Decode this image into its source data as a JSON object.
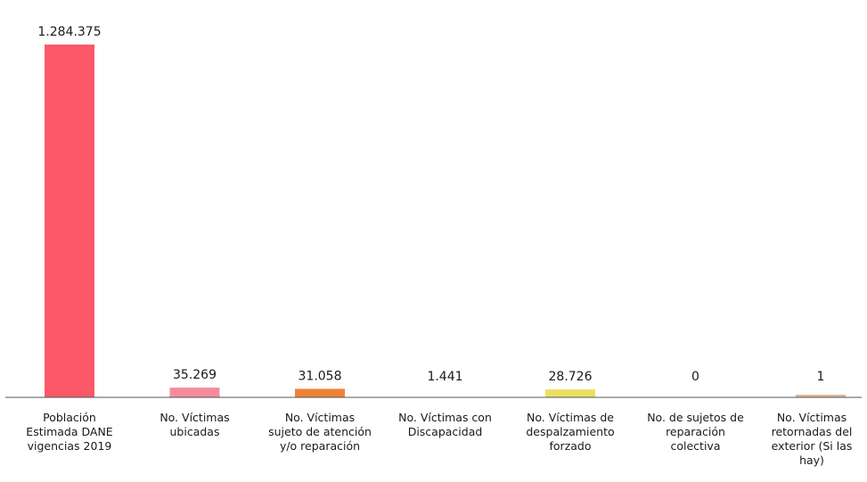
{
  "chart_data": {
    "type": "bar",
    "title": "",
    "xlabel": "",
    "ylabel": "",
    "ylim": [
      0,
      1284375
    ],
    "grid": false,
    "legend": "none",
    "categories": [
      [
        "Población",
        "Estimada DANE",
        "vigencias 2019"
      ],
      [
        "No. Víctimas",
        "ubicadas"
      ],
      [
        "No. Víctimas",
        "sujeto de atención",
        "y/o reparación"
      ],
      [
        "No. Víctimas con",
        "Discapacidad"
      ],
      [
        "No. Víctimas de",
        "despalzamiento",
        "forzado"
      ],
      [
        "No. de sujetos de",
        "reparación",
        "colectiva"
      ],
      [
        "No. Víctimas",
        "retornadas del",
        "exterior (Si las",
        "hay)"
      ]
    ],
    "values": [
      1284375,
      35269,
      31058,
      1441,
      28726,
      0,
      1
    ],
    "value_labels": [
      "1.284.375",
      "35.269",
      "31.058",
      "1.441",
      "28.726",
      "0",
      "1"
    ],
    "colors": [
      "#fb5868",
      "#f48c9c",
      "#ee8338",
      "#9a9a9a",
      "#ecdf64",
      "#c9c9c9",
      "#dfb89a"
    ]
  }
}
